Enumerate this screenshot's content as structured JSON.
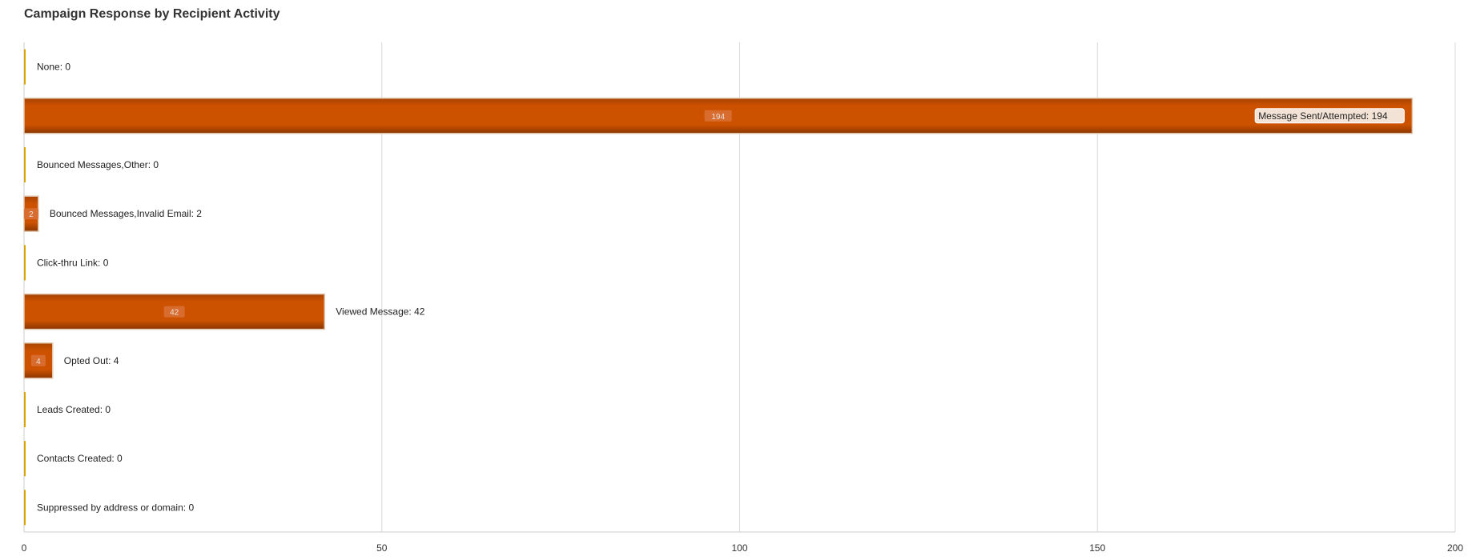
{
  "chart_data": {
    "type": "bar",
    "orientation": "horizontal",
    "title": "Campaign Response by Recipient Activity",
    "xlabel": "",
    "ylabel": "",
    "xlim": [
      0,
      200
    ],
    "x_ticks": [
      0,
      50,
      100,
      150,
      200
    ],
    "grid": true,
    "legend": "none",
    "bar_color": "#cc5200",
    "categories": [
      "None",
      "Message Sent/Attempted",
      "Bounced Messages,Other",
      "Bounced Messages,Invalid Email",
      "Click-thru Link",
      "Viewed Message",
      "Opted Out",
      "Leads Created",
      "Contacts Created",
      "Suppressed by address or domain"
    ],
    "values": [
      0,
      194,
      0,
      2,
      0,
      42,
      4,
      0,
      0,
      0
    ]
  }
}
